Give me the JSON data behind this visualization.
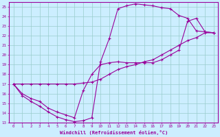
{
  "xlabel": "Windchill (Refroidissement éolien,°C)",
  "bg_color": "#cceeff",
  "line_color": "#990099",
  "grid_color": "#99cccc",
  "marker": "+",
  "xlim": [
    -0.5,
    23.5
  ],
  "ylim": [
    13,
    25.5
  ],
  "xticks": [
    0,
    1,
    2,
    3,
    4,
    5,
    6,
    7,
    8,
    9,
    10,
    11,
    12,
    13,
    14,
    15,
    16,
    17,
    18,
    19,
    20,
    21,
    22,
    23
  ],
  "yticks": [
    13,
    14,
    15,
    16,
    17,
    18,
    19,
    20,
    21,
    22,
    23,
    24,
    25
  ],
  "series": [
    {
      "x": [
        0,
        1,
        2,
        3,
        4,
        5,
        6,
        7,
        8,
        9,
        10,
        11,
        12,
        13,
        14,
        15,
        16,
        17,
        18,
        19,
        20,
        21,
        22,
        23
      ],
      "y": [
        17,
        15.8,
        15.2,
        14.7,
        14.1,
        13.6,
        13.3,
        13.1,
        13.2,
        13.5,
        19.3,
        21.7,
        24.8,
        25.1,
        25.3,
        25.2,
        25.1,
        24.9,
        24.8,
        24.1,
        23.8,
        22.5,
        22.4,
        22.3
      ]
    },
    {
      "x": [
        0,
        1,
        2,
        3,
        4,
        5,
        6,
        7,
        8,
        9,
        10,
        11,
        12,
        13,
        14,
        15,
        16,
        17,
        18,
        19,
        20,
        21,
        22,
        23
      ],
      "y": [
        17.0,
        17.0,
        17.0,
        17.0,
        17.0,
        17.0,
        17.0,
        17.0,
        17.1,
        17.2,
        17.5,
        18.0,
        18.5,
        18.8,
        19.0,
        19.3,
        19.5,
        20.0,
        20.5,
        21.0,
        21.5,
        21.8,
        22.3,
        22.3
      ]
    },
    {
      "x": [
        0,
        1,
        2,
        3,
        4,
        5,
        6,
        7,
        8,
        9,
        10,
        11,
        12,
        13,
        14,
        15,
        16,
        17,
        18,
        19,
        20,
        21,
        22,
        23
      ],
      "y": [
        17.0,
        16.0,
        15.5,
        15.2,
        14.5,
        14.1,
        13.8,
        13.5,
        16.3,
        18.0,
        19.0,
        19.2,
        19.3,
        19.2,
        19.2,
        19.2,
        19.2,
        19.5,
        20.0,
        20.5,
        23.5,
        23.8,
        22.4,
        22.3
      ]
    }
  ]
}
